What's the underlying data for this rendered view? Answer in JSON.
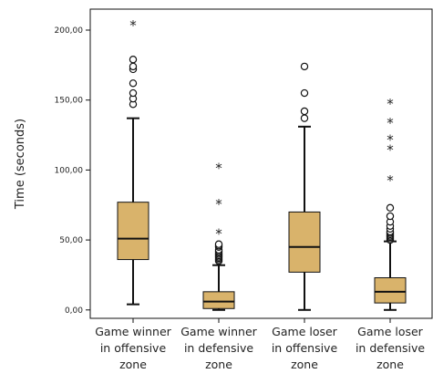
{
  "chart_data": {
    "type": "boxplot",
    "title": "",
    "xlabel": "",
    "ylabel": "Time (seconds)",
    "ylim": [
      -6,
      215
    ],
    "yticks": [
      {
        "value": 0,
        "label": "0,00"
      },
      {
        "value": 50,
        "label": "50,00"
      },
      {
        "value": 100,
        "label": "100,00"
      },
      {
        "value": 150,
        "label": "150,00"
      },
      {
        "value": 200,
        "label": "200,00"
      }
    ],
    "grid": false,
    "colors": {
      "box_fill": "#D9B36B",
      "box_stroke": "#111111",
      "axis": "#111111"
    },
    "categories": [
      {
        "lines": [
          "Game winner",
          "in offensive",
          "zone"
        ]
      },
      {
        "lines": [
          "Game winner",
          "in defensive",
          "zone"
        ]
      },
      {
        "lines": [
          "Game loser",
          "in offensive",
          "zone"
        ]
      },
      {
        "lines": [
          "Game loser",
          "in defensive",
          "zone"
        ]
      }
    ],
    "series": [
      {
        "whisker_low": 4,
        "q1": 36,
        "median": 51,
        "q3": 77,
        "whisker_high": 137,
        "outliers": [
          147,
          151,
          155,
          162,
          172,
          174,
          179
        ],
        "extremes": [
          204
        ]
      },
      {
        "whisker_low": 0,
        "q1": 1,
        "median": 6,
        "q3": 13,
        "whisker_high": 32,
        "outliers": [
          35,
          36,
          37,
          38,
          39,
          40,
          41,
          42,
          43,
          45,
          46,
          47
        ],
        "extremes": [
          55,
          76,
          102
        ]
      },
      {
        "whisker_low": 0,
        "q1": 27,
        "median": 45,
        "q3": 70,
        "whisker_high": 131,
        "outliers": [
          137,
          142,
          155,
          174
        ],
        "extremes": []
      },
      {
        "whisker_low": 0,
        "q1": 5,
        "median": 13,
        "q3": 23,
        "whisker_high": 49,
        "outliers": [
          50,
          51,
          52,
          53,
          54,
          55,
          56,
          58,
          60,
          63,
          67,
          73
        ],
        "extremes": [
          93,
          115,
          122,
          134,
          148
        ]
      }
    ]
  }
}
